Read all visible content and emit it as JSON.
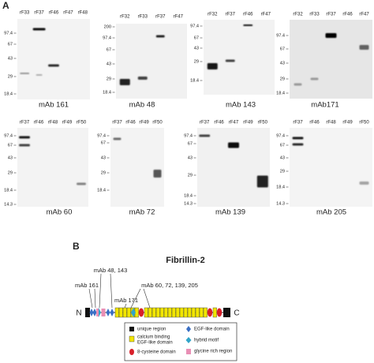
{
  "panel_a": {
    "label": "A",
    "blots": [
      {
        "lanes": [
          "rF33",
          "rF37",
          "rF46",
          "rF47",
          "rF48"
        ],
        "markers": [
          "97.4",
          "67",
          "43",
          "29",
          "18.4"
        ],
        "caption": "mAb 161"
      },
      {
        "lanes": [
          "rF32",
          "rF33",
          "rF37",
          "rF47"
        ],
        "markers": [
          "200",
          "97.4",
          "67",
          "43",
          "29",
          "18.4"
        ],
        "caption": "mAb 48"
      },
      {
        "lanes": [
          "rF32",
          "rF37",
          "rF46",
          "rF47"
        ],
        "markers": [
          "97.4",
          "67",
          "43",
          "29",
          "18.4"
        ],
        "caption": "mAb 143"
      },
      {
        "lanes": [
          "rF32",
          "rF33",
          "rF37",
          "rF46",
          "rF47"
        ],
        "markers": [
          "97.4",
          "67",
          "43",
          "29",
          "18.4"
        ],
        "caption": "mAb171"
      },
      {
        "lanes": [
          "rF37",
          "rF46",
          "rF48",
          "rF49",
          "rF50"
        ],
        "markers": [
          "97.4",
          "67",
          "43",
          "29",
          "18.4",
          "14.3"
        ],
        "caption": "mAb 60"
      },
      {
        "lanes": [
          "rF37",
          "rF46",
          "rF49",
          "rF50"
        ],
        "markers": [
          "97.4",
          "67",
          "43",
          "29",
          "18.4"
        ],
        "caption": "mAb 72"
      },
      {
        "lanes": [
          "rF37",
          "rF46",
          "rF47",
          "rF49",
          "rF50"
        ],
        "markers": [
          "97.4",
          "67",
          "43",
          "29",
          "18.4",
          "14.3"
        ],
        "caption": "mAb 139"
      },
      {
        "lanes": [
          "rF37",
          "rF46",
          "rF48",
          "rF49",
          "rF50"
        ],
        "markers": [
          "97.4",
          "67",
          "43",
          "29",
          "18.4",
          "14.3"
        ],
        "caption": "mAb 205"
      }
    ]
  },
  "panel_b": {
    "label": "B",
    "title": "Fibrillin-2",
    "n_terminus": "N",
    "c_terminus": "C",
    "antibody_labels": [
      "mAb 48, 143",
      "mAb 161",
      "mAb 171",
      "mAb 60, 72, 139, 205"
    ],
    "legend": [
      "unique region",
      [
        "calcium binding",
        "EGF-like domain"
      ],
      "8-cysteine domain",
      "EGF-like domain",
      "hybrid motif",
      "glycine rich region"
    ]
  }
}
